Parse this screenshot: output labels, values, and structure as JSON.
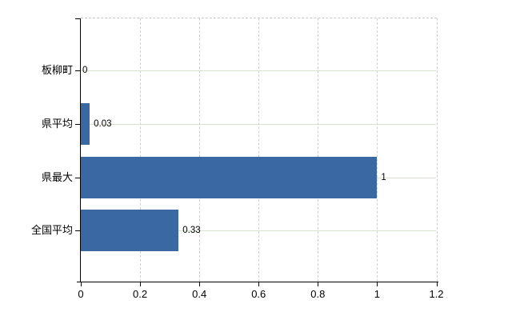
{
  "chart_data": {
    "type": "bar",
    "orientation": "horizontal",
    "title": "",
    "xlabel": "",
    "ylabel": "",
    "categories": [
      "板柳町",
      "県平均",
      "県最大",
      "全国平均"
    ],
    "values": [
      0,
      0.03,
      1,
      0.33
    ],
    "value_labels": [
      "0",
      "0.03",
      "1",
      "0.33"
    ],
    "x_ticks": [
      0,
      0.2,
      0.4,
      0.6,
      0.8,
      1,
      1.2
    ],
    "x_tick_labels": [
      "0",
      "0.2",
      "0.4",
      "0.6",
      "0.8",
      "1",
      "1.2"
    ],
    "xlim": [
      0,
      1.2
    ],
    "grid": true,
    "legend_position": "none",
    "colors": {
      "bar": "#3a68a3",
      "axis": "#000000",
      "horizontal_grid": "#d9e1d1",
      "vertical_grid": "#cfcfcf",
      "plot_border_dashed": "#c8c8c8",
      "background": "#ffffff",
      "text": "#000000"
    }
  }
}
